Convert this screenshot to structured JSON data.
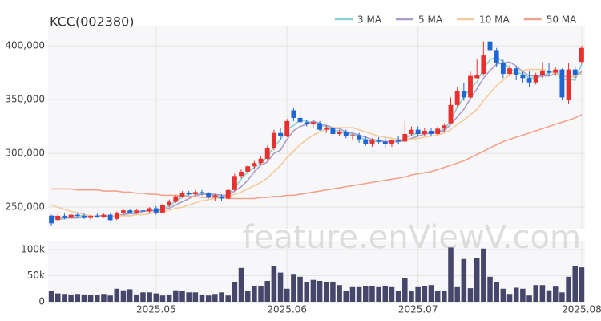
{
  "chart_data": [
    {
      "type": "candlestick",
      "title": "KCC(002380)",
      "open": [
        242000,
        238000,
        242000,
        240000,
        243000,
        242000,
        240000,
        242000,
        241000,
        243000,
        239000,
        245000,
        247000,
        245000,
        247000,
        246000,
        249000,
        245000,
        252000,
        255000,
        260000,
        263000,
        262000,
        264000,
        263000,
        259000,
        260000,
        258000,
        266000,
        279000,
        283000,
        288000,
        291000,
        295000,
        305000,
        319000,
        316000,
        340000,
        333000,
        329000,
        327000,
        328000,
        322000,
        324000,
        318000,
        320000,
        316000,
        317000,
        313000,
        309000,
        312000,
        311000,
        309000,
        312000,
        311000,
        318000,
        322000,
        318000,
        321000,
        318000,
        323000,
        328000,
        345000,
        358000,
        352000,
        370000,
        374000,
        404000,
        396000,
        384000,
        374000,
        379000,
        373000,
        370000,
        366000,
        373000,
        377000,
        375000,
        378000,
        350000,
        378000,
        385000
      ],
      "high": [
        243000,
        244000,
        244000,
        244000,
        245000,
        244000,
        243000,
        244000,
        244000,
        244000,
        246000,
        248000,
        248000,
        248000,
        249000,
        250000,
        251000,
        253000,
        257000,
        261000,
        265000,
        265000,
        266000,
        266000,
        264000,
        262000,
        262000,
        268000,
        281000,
        285000,
        289000,
        293000,
        297000,
        307000,
        322000,
        324000,
        332000,
        342000,
        344000,
        331000,
        331000,
        330000,
        326000,
        325000,
        322000,
        322000,
        318000,
        319000,
        316000,
        314000,
        315000,
        315000,
        313000,
        316000,
        330000,
        325000,
        325000,
        324000,
        324000,
        325000,
        328000,
        352000,
        362000,
        365000,
        376000,
        388000,
        404000,
        408000,
        398000,
        387000,
        382000,
        381000,
        376000,
        376000,
        375000,
        385000,
        384000,
        380000,
        379000,
        384000,
        381000,
        400000
      ],
      "low": [
        233000,
        237000,
        239000,
        239000,
        241000,
        239000,
        238000,
        240000,
        240000,
        237000,
        238000,
        243000,
        244000,
        244000,
        245000,
        244000,
        243000,
        244000,
        250000,
        254000,
        259000,
        261000,
        261000,
        261000,
        258000,
        256000,
        256000,
        257000,
        265000,
        277000,
        281000,
        285000,
        289000,
        293000,
        303000,
        312000,
        315000,
        330000,
        327000,
        325000,
        324000,
        321000,
        319000,
        315000,
        316000,
        314000,
        312000,
        310000,
        307000,
        306000,
        309000,
        305000,
        306000,
        309000,
        310000,
        316000,
        316000,
        316000,
        316000,
        317000,
        320000,
        327000,
        343000,
        349000,
        351000,
        369000,
        372000,
        393000,
        380000,
        370000,
        372000,
        368000,
        365000,
        362000,
        364000,
        370000,
        372000,
        372000,
        350000,
        346000,
        369000,
        383000
      ],
      "close": [
        235000,
        242000,
        240000,
        243000,
        242000,
        240000,
        242000,
        241000,
        243000,
        238000,
        245000,
        247000,
        245000,
        247000,
        246000,
        249000,
        245000,
        252000,
        255000,
        260000,
        263000,
        262000,
        264000,
        263000,
        259000,
        261000,
        258000,
        266000,
        279000,
        283000,
        288000,
        291000,
        295000,
        305000,
        319000,
        316000,
        330000,
        333000,
        329000,
        327000,
        329000,
        322000,
        324000,
        318000,
        320000,
        316000,
        317000,
        313000,
        309000,
        312000,
        311000,
        309000,
        312000,
        311000,
        318000,
        322000,
        318000,
        321000,
        318000,
        323000,
        326000,
        345000,
        358000,
        352000,
        372000,
        373000,
        391000,
        396000,
        384000,
        374000,
        379000,
        373000,
        370000,
        366000,
        373000,
        377000,
        375000,
        378000,
        352000,
        378000,
        373000,
        398000
      ],
      "up_color": "#e8302e",
      "down_color": "#1f66d4",
      "series": [
        {
          "name": "3 MA",
          "color": "#86d2d0",
          "values": [
            240000,
            239000,
            239000,
            242000,
            242000,
            242000,
            241000,
            241000,
            242000,
            241000,
            242000,
            243000,
            246000,
            246000,
            246000,
            247000,
            247000,
            249000,
            251000,
            256000,
            259000,
            262000,
            263000,
            263000,
            262000,
            261000,
            259000,
            262000,
            268000,
            276000,
            283000,
            287000,
            291000,
            297000,
            306000,
            313000,
            322000,
            326000,
            331000,
            330000,
            328000,
            326000,
            325000,
            321000,
            321000,
            318000,
            318000,
            315000,
            313000,
            311000,
            311000,
            311000,
            311000,
            311000,
            314000,
            317000,
            319000,
            320000,
            319000,
            321000,
            322000,
            331000,
            343000,
            352000,
            361000,
            366000,
            379000,
            387000,
            390000,
            385000,
            379000,
            375000,
            374000,
            370000,
            370000,
            372000,
            375000,
            377000,
            368000,
            369000,
            368000,
            383000
          ]
        },
        {
          "name": "5 MA",
          "color": "#ac9ccb",
          "values": [
            242000,
            241000,
            240000,
            240000,
            240000,
            241000,
            241000,
            242000,
            242000,
            241000,
            242000,
            243000,
            244000,
            244000,
            246000,
            247000,
            246000,
            248000,
            249000,
            252000,
            255000,
            258000,
            261000,
            262000,
            262000,
            262000,
            261000,
            261000,
            265000,
            269000,
            275000,
            283000,
            289000,
            292000,
            300000,
            303000,
            313000,
            321000,
            325000,
            327000,
            330000,
            328000,
            326000,
            324000,
            323000,
            320000,
            319000,
            317000,
            315000,
            313000,
            312000,
            311000,
            311000,
            311000,
            312000,
            314000,
            316000,
            318000,
            319000,
            320000,
            321000,
            327000,
            334000,
            341000,
            351000,
            360000,
            370000,
            377000,
            383000,
            384000,
            385000,
            381000,
            376000,
            372000,
            372000,
            372000,
            372000,
            374000,
            371000,
            372000,
            371000,
            376000
          ]
        },
        {
          "name": "10 MA",
          "color": "#f4cb9c",
          "values": [
            252000,
            250000,
            248000,
            246000,
            245000,
            243000,
            242000,
            241000,
            241000,
            241000,
            242000,
            242000,
            242000,
            243000,
            243000,
            244000,
            245000,
            246000,
            247000,
            249000,
            250000,
            252000,
            254000,
            256000,
            257000,
            258000,
            259000,
            260000,
            262000,
            264000,
            267000,
            270000,
            273000,
            277000,
            283000,
            289000,
            296000,
            302000,
            308000,
            313000,
            317000,
            320000,
            323000,
            324000,
            324000,
            324000,
            324000,
            322000,
            320000,
            318000,
            316000,
            315000,
            314000,
            313000,
            313000,
            313000,
            314000,
            315000,
            316000,
            317000,
            319000,
            322000,
            327000,
            331000,
            336000,
            341000,
            349000,
            356000,
            363000,
            368000,
            373000,
            376000,
            377000,
            378000,
            378000,
            378000,
            376000,
            374000,
            371000,
            371000,
            372000,
            374000
          ]
        },
        {
          "name": "50 MA",
          "color": "#f3a38d",
          "values": [
            267000,
            267000,
            267000,
            267000,
            266000,
            266000,
            266000,
            266000,
            265000,
            265000,
            265000,
            264000,
            264000,
            263000,
            263000,
            262000,
            262000,
            261000,
            261000,
            261000,
            260000,
            260000,
            260000,
            259000,
            259000,
            259000,
            259000,
            258000,
            258000,
            258000,
            258000,
            258000,
            259000,
            259000,
            260000,
            260000,
            261000,
            261000,
            262000,
            263000,
            264000,
            265000,
            266000,
            267000,
            268000,
            269000,
            270000,
            271000,
            272000,
            273000,
            274000,
            275000,
            276000,
            277000,
            278000,
            280000,
            281000,
            282000,
            283000,
            285000,
            287000,
            289000,
            291000,
            293000,
            296000,
            299000,
            302000,
            305000,
            308000,
            311000,
            313000,
            315000,
            317000,
            319000,
            321000,
            323000,
            325000,
            327000,
            329000,
            331000,
            333000,
            336000
          ]
        }
      ],
      "ylim": [
        230000,
        418700
      ],
      "yticks": [
        {
          "value": 250000,
          "label": "250,000"
        },
        {
          "value": 300000,
          "label": "300,000"
        },
        {
          "value": 350000,
          "label": "350,000"
        },
        {
          "value": 400000,
          "label": "400,000"
        }
      ],
      "grid": true,
      "legend": "top-right",
      "watermark": "feature.enViewV.com"
    },
    {
      "type": "bar",
      "categories": [
        null,
        null,
        null,
        null,
        null,
        null,
        null,
        null,
        null,
        null,
        null,
        null,
        null,
        null,
        null,
        null,
        "2025.05",
        null,
        null,
        null,
        null,
        null,
        null,
        null,
        null,
        null,
        null,
        null,
        null,
        null,
        null,
        null,
        null,
        null,
        null,
        null,
        "2025.06",
        null,
        null,
        null,
        null,
        null,
        null,
        null,
        null,
        null,
        null,
        null,
        null,
        null,
        null,
        null,
        null,
        null,
        null,
        null,
        "2025.07",
        null,
        null,
        null,
        null,
        null,
        null,
        null,
        null,
        null,
        null,
        null,
        null,
        null,
        null,
        null,
        null,
        null,
        null,
        null,
        null,
        null,
        null,
        null,
        null,
        "2025.08"
      ],
      "values": [
        20000,
        16000,
        15000,
        14000,
        15000,
        14000,
        13000,
        13000,
        15000,
        12000,
        25000,
        22000,
        24000,
        14000,
        18000,
        18000,
        16000,
        12000,
        14000,
        22000,
        20000,
        18000,
        18000,
        14000,
        12000,
        15000,
        18000,
        12000,
        38000,
        65000,
        20000,
        30000,
        30000,
        40000,
        68000,
        56000,
        25000,
        52000,
        48000,
        38000,
        42000,
        40000,
        37000,
        38000,
        32000,
        20000,
        28000,
        28000,
        30000,
        30000,
        28000,
        30000,
        28000,
        20000,
        45000,
        20000,
        28000,
        30000,
        32000,
        20000,
        20000,
        104000,
        28000,
        82000,
        26000,
        84000,
        102000,
        48000,
        38000,
        25000,
        15000,
        27000,
        25000,
        12000,
        32000,
        32000,
        22000,
        29000,
        18000,
        48000,
        68000,
        66000
      ],
      "color": "#46466a",
      "ylim": [
        0,
        117000
      ],
      "yticks": [
        0,
        {
          "value": 50000,
          "label": "50k"
        },
        {
          "value": 100000,
          "label": "100k"
        }
      ],
      "grid": true
    }
  ]
}
